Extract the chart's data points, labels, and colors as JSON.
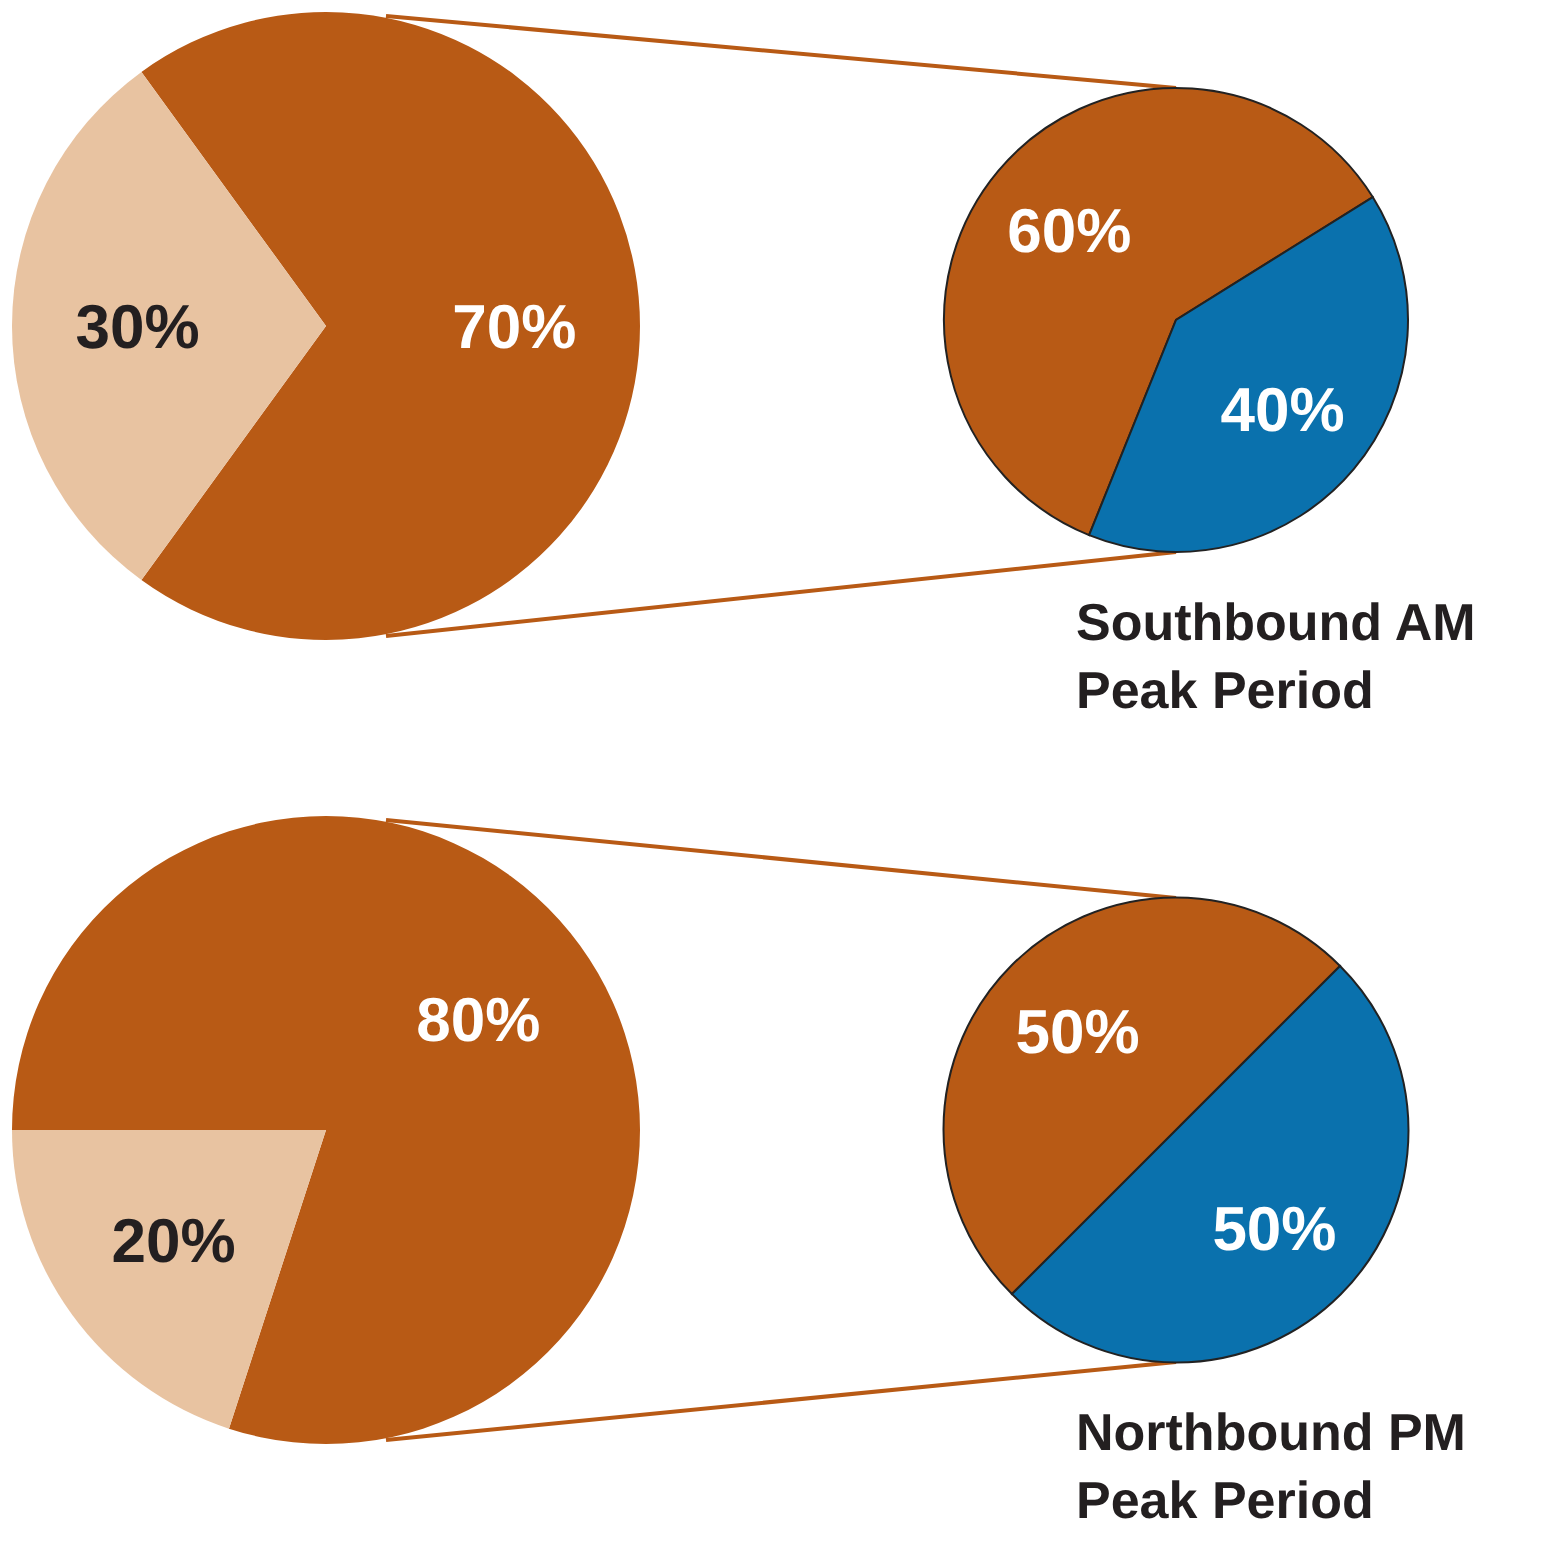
{
  "chart_data": [
    {
      "type": "pie",
      "categories": [
        null,
        null
      ],
      "values": [
        70,
        30
      ],
      "colors": [
        "#b85a15",
        "#e8c3a1"
      ],
      "value_labels": [
        "70%",
        "30%"
      ]
    },
    {
      "type": "pie",
      "title": "Southbound AM Peak Period",
      "categories": [
        null,
        null
      ],
      "values": [
        60,
        40
      ],
      "colors": [
        "#b85a15",
        "#0a71ad"
      ],
      "value_labels": [
        "60%",
        "40%"
      ]
    },
    {
      "type": "pie",
      "categories": [
        null,
        null
      ],
      "values": [
        80,
        20
      ],
      "colors": [
        "#b85a15",
        "#e8c3a1"
      ],
      "value_labels": [
        "80%",
        "20%"
      ]
    },
    {
      "type": "pie",
      "title": "Northbound PM Peak Period",
      "categories": [
        null,
        null
      ],
      "values": [
        50,
        50
      ],
      "colors": [
        "#b85a15",
        "#0a71ad"
      ],
      "value_labels": [
        "50%",
        "50%"
      ]
    }
  ]
}
